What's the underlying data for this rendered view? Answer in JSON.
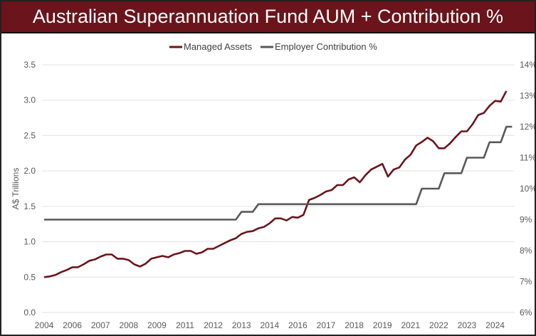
{
  "title": "Australian Superannuation Fund AUM + Contribution %",
  "chart_data": {
    "type": "line",
    "title": "Australian Superannuation Fund AUM + Contribution %",
    "x_tick_labels": [
      "2004",
      "2006",
      "2007",
      "2008",
      "2009",
      "2011",
      "2012",
      "2013",
      "2014",
      "2016",
      "2017",
      "2018",
      "2019",
      "2021",
      "2022",
      "2023",
      "2024"
    ],
    "ylabel": "A$ Trillions",
    "ylim": [
      0,
      3.5
    ],
    "y_ticks": [
      "0.0",
      "0.5",
      "1.0",
      "1.5",
      "2.0",
      "2.5",
      "3.0",
      "3.5"
    ],
    "y2lim": [
      6,
      14
    ],
    "y2_ticks": [
      "6%",
      "7%",
      "8%",
      "9%",
      "10%",
      "11%",
      "12%",
      "13%",
      "14%"
    ],
    "grid": true,
    "legend": "top",
    "series": [
      {
        "name": "Managed Assets",
        "axis": "left",
        "color": "#6b141b",
        "values": [
          0.5,
          0.51,
          0.53,
          0.57,
          0.6,
          0.64,
          0.64,
          0.68,
          0.73,
          0.75,
          0.79,
          0.82,
          0.82,
          0.76,
          0.76,
          0.74,
          0.68,
          0.65,
          0.69,
          0.76,
          0.78,
          0.8,
          0.78,
          0.82,
          0.84,
          0.87,
          0.87,
          0.83,
          0.85,
          0.9,
          0.9,
          0.94,
          0.98,
          1.02,
          1.05,
          1.11,
          1.14,
          1.15,
          1.19,
          1.21,
          1.26,
          1.33,
          1.33,
          1.3,
          1.35,
          1.34,
          1.38,
          1.59,
          1.62,
          1.66,
          1.71,
          1.73,
          1.8,
          1.8,
          1.88,
          1.91,
          1.84,
          1.94,
          2.02,
          2.06,
          2.1,
          1.92,
          2.02,
          2.05,
          2.16,
          2.23,
          2.36,
          2.41,
          2.47,
          2.42,
          2.32,
          2.32,
          2.39,
          2.48,
          2.56,
          2.56,
          2.66,
          2.79,
          2.82,
          2.92,
          2.99,
          2.98,
          3.13
        ]
      },
      {
        "name": "Employer Contribution %",
        "axis": "right",
        "color": "#595959",
        "values": [
          9,
          9,
          9,
          9,
          9,
          9,
          9,
          9,
          9,
          9,
          9,
          9,
          9,
          9,
          9,
          9,
          9,
          9,
          9,
          9,
          9,
          9,
          9,
          9,
          9,
          9,
          9,
          9,
          9,
          9,
          9,
          9,
          9,
          9,
          9,
          9.25,
          9.25,
          9.25,
          9.5,
          9.5,
          9.5,
          9.5,
          9.5,
          9.5,
          9.5,
          9.5,
          9.5,
          9.5,
          9.5,
          9.5,
          9.5,
          9.5,
          9.5,
          9.5,
          9.5,
          9.5,
          9.5,
          9.5,
          9.5,
          9.5,
          9.5,
          9.5,
          9.5,
          9.5,
          9.5,
          9.5,
          9.5,
          10,
          10,
          10,
          10,
          10.5,
          10.5,
          10.5,
          10.5,
          11,
          11,
          11,
          11,
          11.5,
          11.5,
          11.5,
          12,
          12
        ]
      }
    ]
  }
}
